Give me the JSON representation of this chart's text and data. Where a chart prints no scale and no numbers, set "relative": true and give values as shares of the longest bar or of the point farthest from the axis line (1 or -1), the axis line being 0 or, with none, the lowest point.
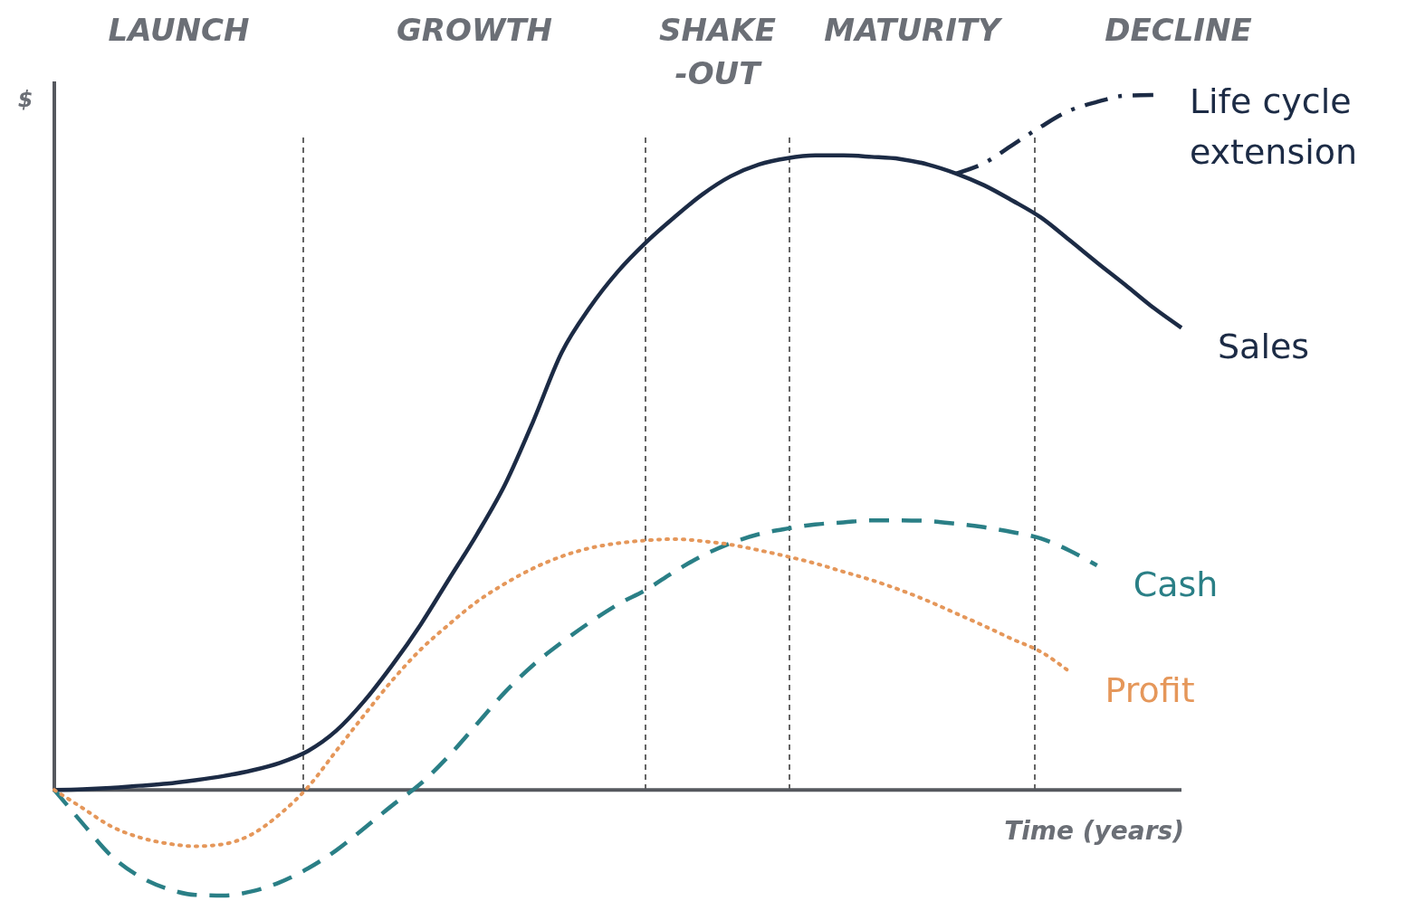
{
  "chart_data": {
    "type": "line",
    "relative": true,
    "xlabel": "Time (years)",
    "ylabel": "$",
    "categories": [
      null,
      null,
      null,
      null,
      null,
      null,
      null,
      null,
      null,
      null,
      null,
      null,
      null,
      null,
      null,
      null,
      null,
      null,
      null,
      null,
      null,
      null,
      null,
      null,
      null,
      null,
      null,
      null,
      null,
      null,
      null,
      null,
      null,
      null,
      null,
      null,
      null,
      null,
      null,
      null,
      null
    ],
    "series": [
      {
        "name": "Sales",
        "color": "#1c2b45",
        "line_style": "solid",
        "values": [
          0,
          0.001,
          0.003,
          0.006,
          0.009,
          0.014,
          0.02,
          0.028,
          0.039,
          0.056,
          0.085,
          0.128,
          0.18,
          0.238,
          0.303,
          0.368,
          0.44,
          0.531,
          0.629,
          0.694,
          0.746,
          0.788,
          0.824,
          0.857,
          0.883,
          0.9,
          0.909,
          0.913,
          0.913,
          0.911,
          0.908,
          0.9,
          0.887,
          0.87,
          0.848,
          0.824,
          0.792,
          0.759,
          0.727,
          0.694,
          0.665
        ]
      },
      {
        "name": "Life cycle extension",
        "color": "#1c2b45",
        "line_style": "dashdot",
        "values": [
          null,
          null,
          null,
          null,
          null,
          null,
          null,
          null,
          null,
          null,
          null,
          null,
          null,
          null,
          null,
          null,
          null,
          null,
          null,
          null,
          null,
          null,
          null,
          null,
          null,
          null,
          null,
          null,
          null,
          null,
          null,
          null,
          0.887,
          0.902,
          0.928,
          0.954,
          0.977,
          0.99,
          0.999,
          1,
          null
        ]
      },
      {
        "name": "Cash",
        "color": "#2a7f86",
        "line_style": "dashed",
        "values": [
          0,
          -0.048,
          -0.094,
          -0.124,
          -0.142,
          -0.151,
          -0.152,
          -0.146,
          -0.133,
          -0.113,
          -0.087,
          -0.055,
          -0.022,
          0.009,
          0.049,
          0.095,
          0.141,
          0.18,
          0.212,
          0.241,
          0.267,
          0.288,
          0.314,
          0.337,
          0.355,
          0.368,
          0.376,
          0.382,
          0.385,
          0.388,
          0.388,
          0.387,
          0.383,
          0.378,
          0.371,
          0.362,
          0.345,
          0.323,
          null,
          null,
          null
        ]
      },
      {
        "name": "Profit",
        "color": "#e5975a",
        "line_style": "dotted",
        "values": [
          0,
          -0.026,
          -0.052,
          -0.068,
          -0.077,
          -0.081,
          -0.078,
          -0.064,
          -0.035,
          0.004,
          0.056,
          0.108,
          0.158,
          0.202,
          0.238,
          0.271,
          0.297,
          0.319,
          0.336,
          0.348,
          0.355,
          0.359,
          0.361,
          0.358,
          0.353,
          0.345,
          0.336,
          0.326,
          0.314,
          0.302,
          0.288,
          0.272,
          0.254,
          0.236,
          0.217,
          0.199,
          0.171,
          null,
          null,
          null,
          null
        ]
      }
    ],
    "annotations": [
      "LAUNCH",
      "GROWTH",
      "SHAKE\n-OUT",
      "MATURITY",
      "DECLINE"
    ],
    "legend": false,
    "marker": "none"
  }
}
